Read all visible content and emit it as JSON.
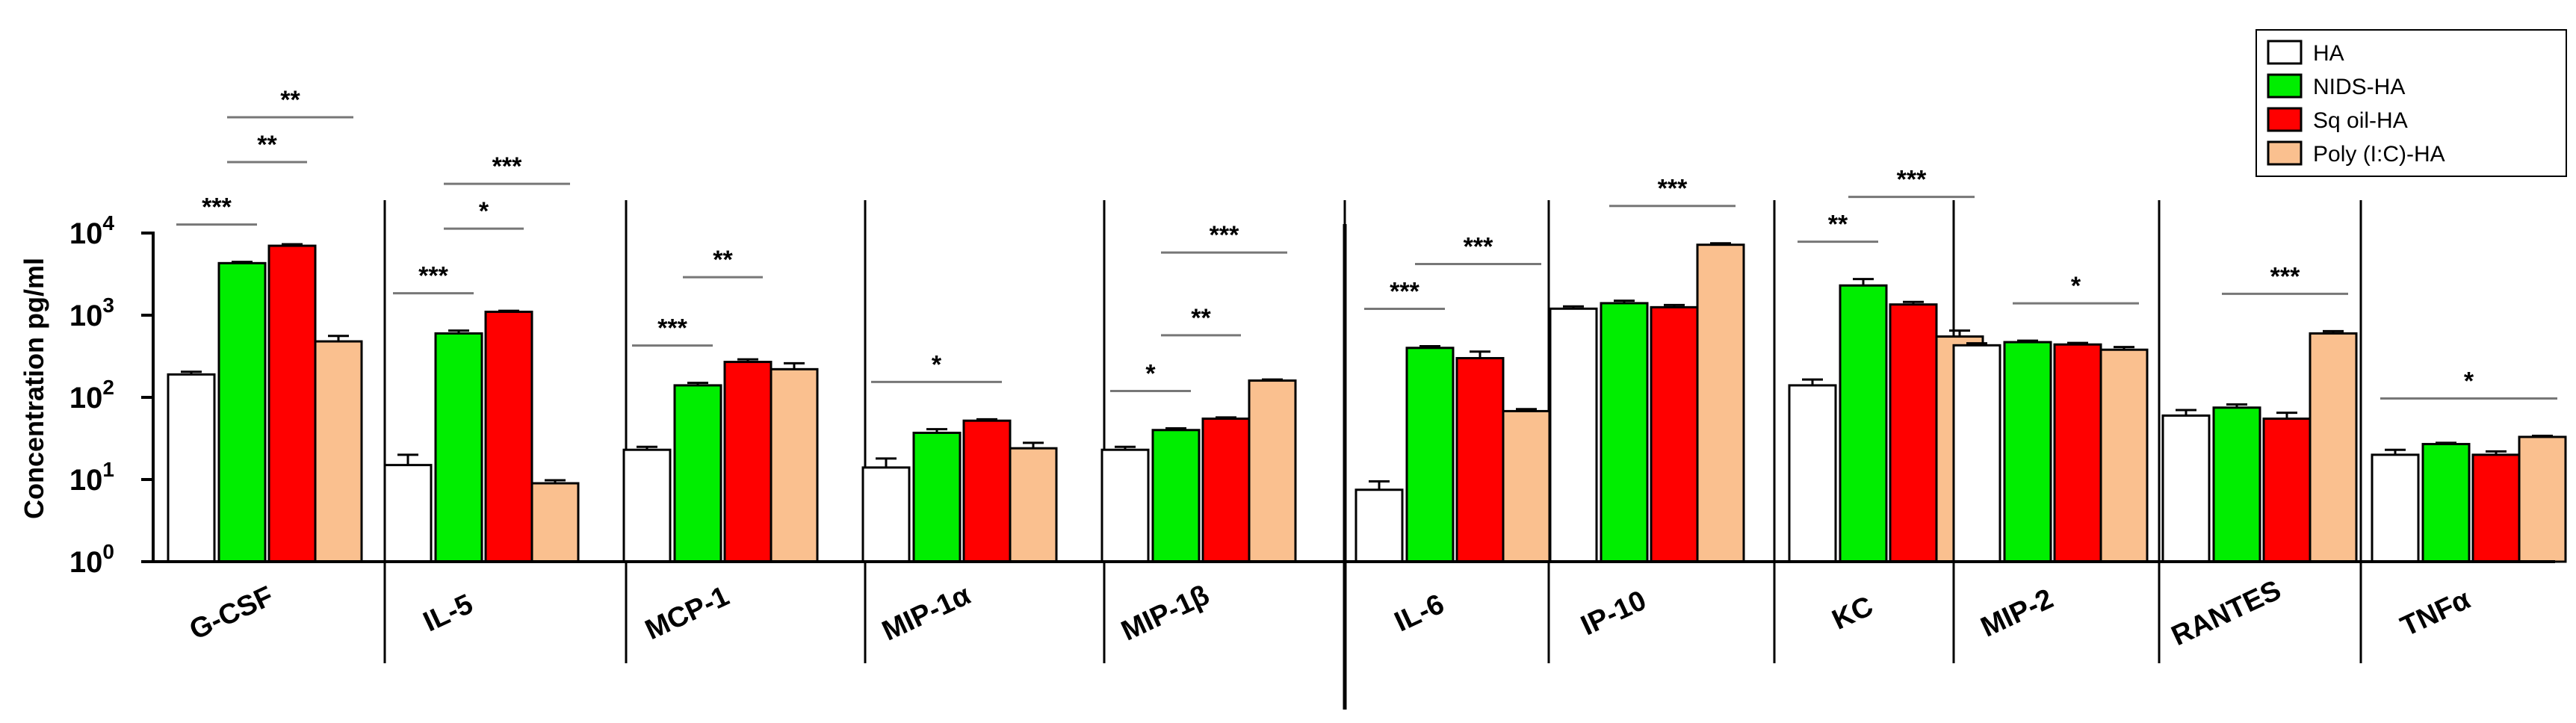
{
  "chart_data": {
    "type": "bar",
    "ylabel": "Concentration pg/ml",
    "yscale": "log",
    "ylim": [
      1,
      10000
    ],
    "yticks": [
      {
        "value": 1,
        "base": "10",
        "exp": "0"
      },
      {
        "value": 10,
        "base": "10",
        "exp": "1"
      },
      {
        "value": 100,
        "base": "10",
        "exp": "2"
      },
      {
        "value": 1000,
        "base": "10",
        "exp": "3"
      },
      {
        "value": 10000,
        "base": "10",
        "exp": "4"
      }
    ],
    "legend_position": "top-right",
    "series": [
      {
        "name": "HA",
        "color": "#ffffff"
      },
      {
        "name": "NIDS-HA",
        "color": "#00ee00"
      },
      {
        "name": "Sq oil-HA",
        "color": "#ff0000"
      },
      {
        "name": "Poly (I:C)-HA",
        "color": "#fac08f"
      }
    ],
    "categories": [
      {
        "label": "G-CSF",
        "values": [
          190,
          4300,
          7000,
          480
        ],
        "errors": [
          205,
          4450,
          7300,
          560
        ],
        "sig": [
          {
            "from": 0,
            "to": 1,
            "label": "***"
          },
          {
            "from": 1,
            "to": 2,
            "label": "**"
          },
          {
            "from": 1,
            "to": 3,
            "label": "**"
          }
        ]
      },
      {
        "label": "IL-5",
        "values": [
          15,
          600,
          1100,
          9
        ],
        "errors": [
          20,
          650,
          1130,
          9.8
        ],
        "sig": [
          {
            "from": 0,
            "to": 1,
            "label": "***"
          },
          {
            "from": 1,
            "to": 2,
            "label": "*"
          },
          {
            "from": 1,
            "to": 3,
            "label": "***"
          }
        ]
      },
      {
        "label": "MCP-1",
        "values": [
          23,
          140,
          270,
          220
        ],
        "errors": [
          25,
          150,
          290,
          260
        ],
        "sig": [
          {
            "from": 0,
            "to": 1,
            "label": "***"
          },
          {
            "from": 1,
            "to": 2,
            "label": "**"
          }
        ]
      },
      {
        "label": "MIP-1α",
        "values": [
          14,
          37,
          52,
          24
        ],
        "errors": [
          18,
          41,
          54,
          28
        ],
        "sig": [
          {
            "from": 0,
            "to": 2,
            "label": "*"
          }
        ]
      },
      {
        "label": "MIP-1β",
        "values": [
          23,
          40,
          55,
          160
        ],
        "errors": [
          25,
          42,
          57,
          165
        ],
        "sig": [
          {
            "from": 0,
            "to": 1,
            "label": "*"
          },
          {
            "from": 1,
            "to": 2,
            "label": "**"
          },
          {
            "from": 1,
            "to": 3,
            "label": "***"
          }
        ]
      },
      {
        "label": "IL-6",
        "values": [
          7.5,
          400,
          300,
          68
        ],
        "errors": [
          9.5,
          420,
          360,
          72
        ],
        "sig": [
          {
            "from": 0,
            "to": 1,
            "label": "***"
          },
          {
            "from": 1,
            "to": 3,
            "label": "***"
          }
        ]
      },
      {
        "label": "IP-10",
        "values": [
          1200,
          1400,
          1250,
          7200
        ],
        "errors": [
          1280,
          1500,
          1330,
          7500
        ],
        "sig": [
          {
            "from": 1,
            "to": 3,
            "label": "***"
          }
        ]
      },
      {
        "label": "KC",
        "values": [
          140,
          2300,
          1350,
          550
        ],
        "errors": [
          165,
          2750,
          1450,
          650
        ],
        "sig": [
          {
            "from": 0,
            "to": 1,
            "label": "**"
          },
          {
            "from": 1,
            "to": 3,
            "label": "***"
          }
        ]
      },
      {
        "label": "MIP-2",
        "values": [
          430,
          470,
          440,
          380
        ],
        "errors": [
          455,
          490,
          460,
          410
        ],
        "sig": [
          {
            "from": 1,
            "to": 3,
            "label": "*"
          }
        ]
      },
      {
        "label": "RANTES",
        "values": [
          60,
          75,
          55,
          600
        ],
        "errors": [
          70,
          82,
          65,
          640
        ],
        "sig": [
          {
            "from": 1,
            "to": 3,
            "label": "***"
          }
        ]
      },
      {
        "label": "TNFα",
        "values": [
          20,
          27,
          20,
          33
        ],
        "errors": [
          23,
          28,
          22,
          34
        ],
        "sig": [
          {
            "from": 0,
            "to": 3,
            "label": "*"
          }
        ]
      }
    ]
  }
}
